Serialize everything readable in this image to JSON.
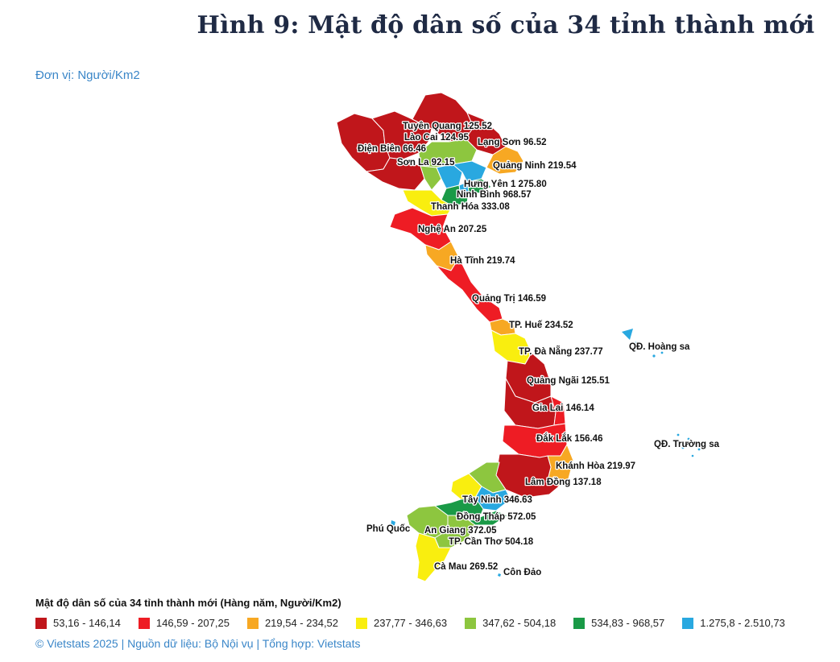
{
  "title": "Hình 9: Mật độ dân số của 34 tỉnh thành mới",
  "unit": "Đơn vị: Người/Km2",
  "legend": {
    "title": "Mật độ dân số của 34 tỉnh thành mới (Hàng năm, Người/Km2)",
    "classes": [
      {
        "label": "53,16 - 146,14",
        "color": "#c0161b"
      },
      {
        "label": "146,59 - 207,25",
        "color": "#ee1c24"
      },
      {
        "label": "219,54 - 234,52",
        "color": "#f7a823"
      },
      {
        "label": "237,77 - 346,63",
        "color": "#f9ee0f"
      },
      {
        "label": "347,62 - 504,18",
        "color": "#8dc63f"
      },
      {
        "label": "534,83 - 968,57",
        "color": "#1a9a47"
      },
      {
        "label": "1.275,8 - 2.510,73",
        "color": "#29a8e0"
      }
    ]
  },
  "labels": {
    "tuyen_quang": "Tuyên Quang 125.52",
    "lao_cai": "Lào Cai 124.95",
    "lang_son": "Lạng Sơn 96.52",
    "dien_bien": "Điện Biên 66.46",
    "son_la": "Sơn La 92.15",
    "quang_ninh": "Quảng Ninh 219.54",
    "hung_yen": "Hưng Yên 1 275.80",
    "ninh_binh": "Ninh Bình 968.57",
    "thanh_hoa": "Thanh Hóa 333.08",
    "nghe_an": "Nghệ An 207.25",
    "ha_tinh": "Hà Tĩnh 219.74",
    "quang_tri": "Quảng Trị 146.59",
    "hue": "TP. Huế 234.52",
    "da_nang": "TP. Đà Nẵng 237.77",
    "hoang_sa": "QĐ. Hoàng sa",
    "quang_ngai": "Quảng Ngãi 125.51",
    "gia_lai": "Gia Lai 146.14",
    "dak_lak": "Đắk Lắk 156.46",
    "truong_sa": "QĐ. Trường sa",
    "khanh_hoa": "Khánh Hòa 219.97",
    "lam_dong": "Lâm Đồng 137.18",
    "tay_ninh": "Tây Ninh 346.63",
    "dong_thap": "Đồng Tháp 572.05",
    "phu_quoc": "Phú Quốc",
    "an_giang": "An Giang 372.05",
    "can_tho": "TP. Cần Thơ 504.18",
    "ca_mau": "Cà Mau 269.52",
    "con_dao": "Côn Đảo"
  },
  "footer": "© Vietstats 2025 | Nguồn dữ liệu: Bộ Nội vụ | Tổng hợp: Vietstats"
}
